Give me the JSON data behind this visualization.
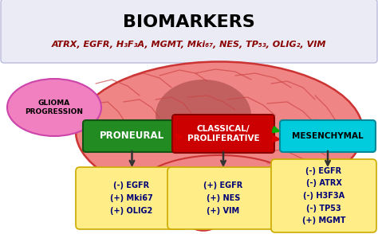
{
  "background_color": "#ffffff",
  "title_box_color": "#ebebf5",
  "title_text": "BIOMARKERS",
  "subtitle_text": "ATRX, EGFR, H₃F₃A, MGMT, Mki₆₇, NES, TP₅₃, OLIG₂, VIM",
  "brain_color": "#f08585",
  "brain_edge_color": "#cc3333",
  "brain_dark_color": "#8B3333",
  "glioma_box_color": "#f080c0",
  "glioma_edge_color": "#cc44aa",
  "proneural_box_color": "#228B22",
  "proneural_edge_color": "#145214",
  "classical_box_color": "#cc0000",
  "classical_edge_color": "#880000",
  "mesenchymal_box_color": "#00ccdd",
  "mesenchymal_edge_color": "#008899",
  "marker_box_color": "#ffee88",
  "marker_box_edge": "#ccaa00",
  "proneural_label": "PRONEURAL",
  "classical_label": "CLASSICAL/\nPROLIFERATIVE",
  "mesenchymal_label": "MESENCHYMAL",
  "glioma_label": "GLIOMA\nPROGRESSION",
  "proneural_markers": "(-) EGFR\n(+) Mki67\n(+) OLIG2",
  "classical_markers": "(+) EGFR\n(+) NES\n(+) VIM",
  "mesenchymal_markers": "(-) EGFR\n(-) ATRX\n(-) H3F3A\n(-) TP53\n(+) MGMT",
  "arrow_red": "#dd0000",
  "arrow_green": "#00aa00",
  "arrow_dark": "#333333"
}
